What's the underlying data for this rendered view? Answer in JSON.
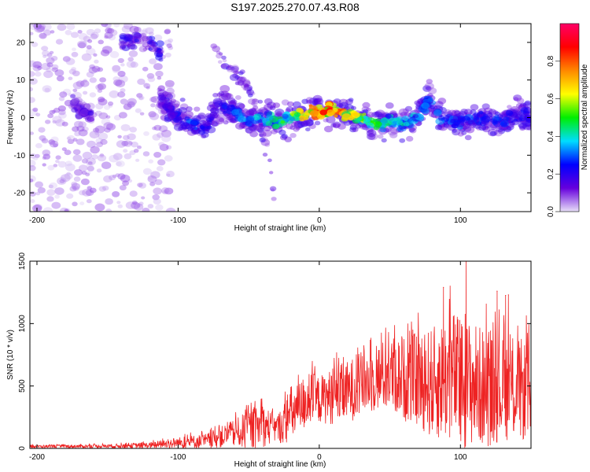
{
  "title": "S197.2025.270.07.43.R08",
  "chart_data": [
    {
      "type": "heatmap",
      "name": "spectrogram",
      "xlabel": "Height of straight line (km)",
      "ylabel": "Frequency (Hz)",
      "xlim": [
        -205,
        150
      ],
      "ylim": [
        -25,
        25
      ],
      "xticks": [
        -200,
        -100,
        0,
        100
      ],
      "yticks": [
        -20,
        -10,
        0,
        10,
        20
      ],
      "colorbar": {
        "label": "Normalized spectral amplitude",
        "range": [
          0,
          1
        ],
        "ticks": [
          0.0,
          0.2,
          0.4,
          0.6,
          0.8
        ],
        "tick_labels": [
          "0.0",
          "0.2",
          "0.4",
          "0.6",
          "0.8"
        ],
        "stops": [
          "#e8e0f8",
          "#6600dd",
          "#0000ff",
          "#00ddff",
          "#00ee00",
          "#ffff00",
          "#ff8800",
          "#ff0000",
          "#ff0066"
        ]
      },
      "ridge": {
        "x": [
          -112,
          -100,
          -90,
          -80,
          -72,
          -62,
          -50,
          -40,
          -30,
          -20,
          -10,
          0,
          10,
          20,
          30,
          40,
          50,
          60,
          70,
          78,
          85,
          95,
          105,
          115,
          125,
          135,
          145,
          150
        ],
        "y": [
          5,
          0,
          -2,
          -3,
          3,
          2,
          -1,
          0,
          -1,
          0,
          1,
          1.5,
          2,
          0.5,
          -0.5,
          -2,
          -1,
          -1.5,
          0,
          5,
          0,
          -1,
          -1,
          0,
          -1,
          0,
          1,
          0
        ],
        "amplitude": [
          0.15,
          0.25,
          0.3,
          0.2,
          0.25,
          0.3,
          0.35,
          0.4,
          0.45,
          0.55,
          0.75,
          0.85,
          0.9,
          0.7,
          0.6,
          0.5,
          0.45,
          0.4,
          0.35,
          0.3,
          0.35,
          0.3,
          0.3,
          0.25,
          0.3,
          0.25,
          0.25,
          0.2
        ]
      },
      "secondary_streaks": [
        {
          "x": [
            -75,
            -60,
            -50,
            -45,
            -40,
            -35,
            -32
          ],
          "y": [
            18,
            12,
            8,
            2,
            -5,
            -12,
            -22
          ],
          "amplitude": 0.1
        },
        {
          "x": [
            -140,
            -130,
            -120,
            -112
          ],
          "y": [
            20,
            21,
            20,
            17
          ],
          "amplitude": 0.12
        },
        {
          "x": [
            -175,
            -170,
            -165,
            -160
          ],
          "y": [
            4,
            2,
            1,
            0
          ],
          "amplitude": 0.1
        }
      ],
      "background_noise": {
        "xrange": [
          -205,
          -105
        ],
        "yrange": [
          -25,
          25
        ],
        "amplitude": 0.05
      }
    },
    {
      "type": "line",
      "name": "snr",
      "xlabel": "Height of straight line (km)",
      "ylabel": "SNR (10 * v/v)",
      "xlim": [
        -205,
        150
      ],
      "ylim": [
        0,
        1500
      ],
      "xticks": [
        -200,
        -100,
        0,
        100
      ],
      "yticks": [
        0,
        500,
        1000,
        1500
      ],
      "color": "#ee2222",
      "envelope": {
        "x": [
          -205,
          -150,
          -120,
          -100,
          -80,
          -60,
          -50,
          -40,
          -30,
          -25,
          -20,
          -15,
          -10,
          -5,
          0,
          10,
          20,
          30,
          40,
          50,
          60,
          70,
          80,
          90,
          95,
          100,
          105,
          110,
          120,
          130,
          140,
          150
        ],
        "base": [
          15,
          18,
          25,
          45,
          60,
          120,
          150,
          180,
          160,
          200,
          280,
          300,
          380,
          400,
          390,
          420,
          450,
          520,
          560,
          600,
          560,
          550,
          520,
          560,
          600,
          480,
          520,
          520,
          470,
          480,
          470,
          460
        ],
        "spread": [
          12,
          15,
          25,
          45,
          60,
          110,
          160,
          170,
          110,
          170,
          230,
          220,
          230,
          210,
          190,
          230,
          250,
          260,
          270,
          300,
          340,
          380,
          450,
          500,
          520,
          560,
          520,
          500,
          460,
          420,
          420,
          400
        ]
      },
      "peaks": [
        {
          "x": 104,
          "y": 1500
        },
        {
          "x": 88,
          "y": 1290
        },
        {
          "x": 126,
          "y": 1260
        },
        {
          "x": 134,
          "y": 1230
        },
        {
          "x": 132,
          "y": 1225
        }
      ]
    }
  ]
}
